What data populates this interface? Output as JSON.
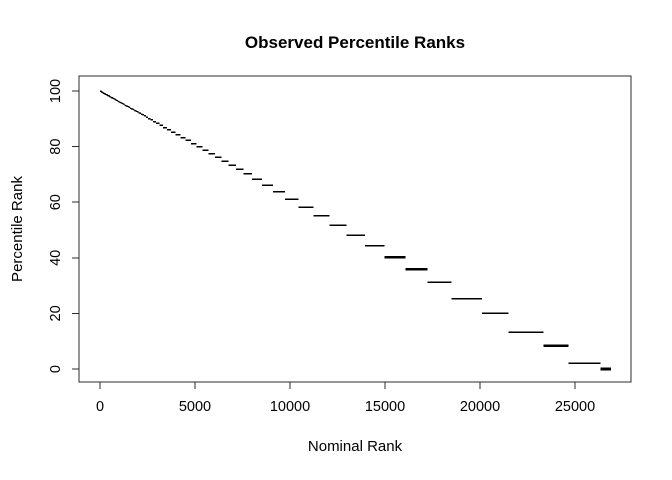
{
  "figure": {
    "background": "#ffffff"
  },
  "chart_data": {
    "type": "scatter",
    "subtype": "percentile-rank-staircase-of-horizontal-dashes",
    "title": "Observed Percentile Ranks",
    "xlabel": "Nominal Rank",
    "ylabel": "Percentile Rank",
    "x_tick_values": [
      0,
      5000,
      10000,
      15000,
      20000,
      25000
    ],
    "x_tick_labels": [
      "0",
      "5000",
      "10000",
      "15000",
      "20000",
      "25000"
    ],
    "y_tick_values": [
      0,
      20,
      40,
      60,
      80,
      100
    ],
    "y_tick_labels": [
      "0",
      "20",
      "40",
      "60",
      "80",
      "100"
    ],
    "xlim": [
      -1105,
      27948
    ],
    "ylim": [
      -4.67,
      105.4
    ],
    "grid": false,
    "legend": null,
    "n_total": 26900,
    "x_start": 0,
    "percentile_formula": "p = 100 * (n_total - cumulative_rank_at_group_end) / n_total; each tie group is drawn as a horizontal dash spanning its nominal ranks at its percentile rank",
    "tie_group_sizes": [
      20,
      21,
      22,
      23,
      24,
      25,
      26,
      27,
      28,
      29,
      30,
      31,
      32,
      33,
      34,
      35,
      36,
      37,
      38,
      39,
      40,
      41,
      42,
      43,
      44,
      45,
      46,
      47,
      48,
      49,
      50,
      51,
      52,
      53,
      54,
      55,
      56,
      57,
      58,
      59,
      60,
      61,
      62,
      63,
      64,
      65,
      66,
      67,
      68,
      69,
      85,
      100,
      115,
      130,
      145,
      160,
      175,
      190,
      205,
      220,
      235,
      250,
      265,
      280,
      295,
      310,
      325,
      340,
      355,
      370,
      385,
      400,
      450,
      515,
      580,
      645,
      710,
      775,
      840,
      905,
      970,
      1035,
      1100,
      1165,
      1250,
      1600,
      1400,
      1850,
      1300,
      1700,
      550
    ],
    "bold_percentiles": [
      40.2,
      35.9,
      8.4,
      0
    ],
    "series_color": "#000000",
    "axis_color": "#2b2b2b"
  }
}
